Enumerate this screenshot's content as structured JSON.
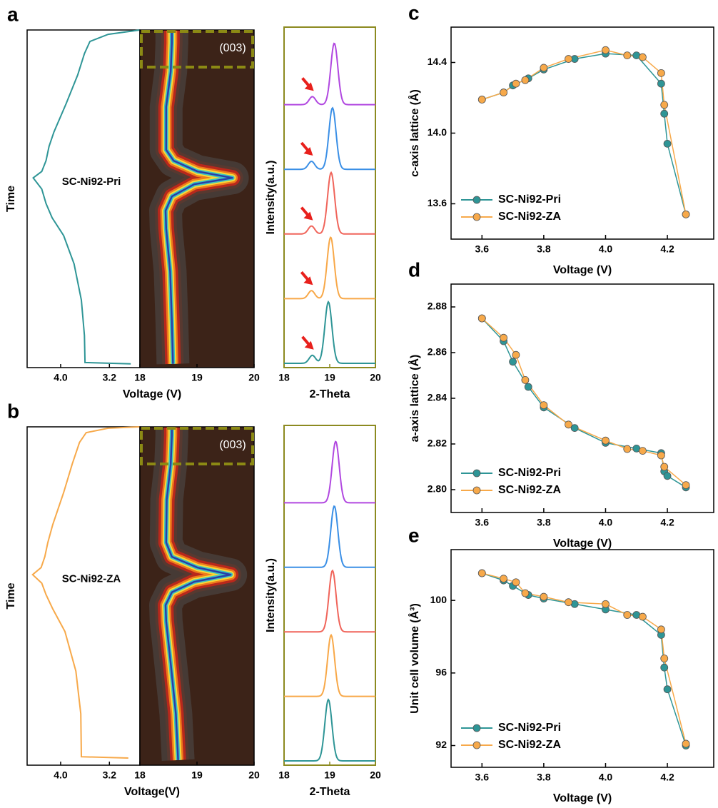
{
  "chart_data": [
    {
      "type": "line",
      "panel": "a",
      "xlabel": "Voltage (V)",
      "ylabel": "Time",
      "annotation": "SC-Ni92-Pri",
      "color": "#2e9596",
      "x": [
        2.85,
        3.6,
        3.61,
        3.66,
        3.78,
        3.95,
        4.14,
        4.24,
        4.31,
        4.45,
        4.31,
        4.24,
        4.19,
        4.11,
        3.91,
        3.72,
        3.61,
        3.52,
        3.22,
        2.7
      ],
      "y": [
        0.011,
        0.015,
        0.095,
        0.2,
        0.307,
        0.391,
        0.444,
        0.486,
        0.529,
        0.562,
        0.581,
        0.613,
        0.655,
        0.698,
        0.782,
        0.867,
        0.93,
        0.966,
        0.987,
        1.0
      ],
      "xlim": [
        4.55,
        2.7
      ],
      "xticks": [
        {
          "value": 4,
          "label": "4.0"
        },
        3.2
      ],
      "ylim": [
        0,
        1
      ]
    },
    {
      "type": "contour",
      "annotation": "(003)",
      "x": [
        18.58,
        18.56,
        18.53,
        18.46,
        18.45,
        18.56,
        18.95,
        19.62,
        19.01,
        18.59,
        18.46,
        18.46,
        18.54,
        18.56,
        18.56
      ],
      "y": [
        0.011,
        0.137,
        0.285,
        0.412,
        0.465,
        0.507,
        0.543,
        0.562,
        0.581,
        0.613,
        0.645,
        0.772,
        0.877,
        0.962,
        1.0
      ],
      "xlim": [
        18,
        20
      ],
      "xticks": [
        18,
        19,
        20
      ],
      "ylim": [
        0,
        1
      ]
    },
    {
      "type": "spectra",
      "xlabel": "2-Theta",
      "ylabel": "Intensity(a.u.)",
      "xlim": [
        18,
        20
      ],
      "xticks": [
        18,
        19,
        20
      ],
      "arrow_color": "#e8201c",
      "series": [
        {
          "color": "#b148e0",
          "peak": 19.1,
          "shoulder": 18.62
        },
        {
          "color": "#3a8fe6",
          "peak": 19.06,
          "shoulder": 18.6
        },
        {
          "color": "#f0645a",
          "peak": 19.03,
          "shoulder": 18.6
        },
        {
          "color": "#f8a848",
          "peak": 19.02,
          "shoulder": 18.6
        },
        {
          "color": "#2e9596",
          "peak": 18.97,
          "shoulder": 18.62
        }
      ]
    },
    {
      "type": "line",
      "panel": "b",
      "xlabel": "Voltage(V)",
      "ylabel": "Time",
      "annotation": "SC-Ni92-ZA",
      "color": "#f7a94a",
      "x": [
        2.89,
        3.66,
        3.67,
        3.75,
        3.93,
        4.13,
        4.24,
        4.31,
        4.46,
        4.32,
        4.26,
        4.21,
        4.13,
        3.95,
        3.81,
        3.69,
        3.58,
        3.22,
        2.7
      ],
      "y": [
        0.021,
        0.025,
        0.152,
        0.278,
        0.395,
        0.462,
        0.504,
        0.538,
        0.563,
        0.584,
        0.616,
        0.658,
        0.711,
        0.806,
        0.89,
        0.954,
        0.983,
        0.996,
        1.0
      ],
      "xlim": [
        4.55,
        2.7
      ],
      "xticks": [
        {
          "value": 4,
          "label": "4.0"
        },
        3.2
      ],
      "ylim": [
        0,
        1
      ]
    },
    {
      "type": "contour",
      "annotation": "(003)",
      "x": [
        18.67,
        18.63,
        18.54,
        18.46,
        18.45,
        18.56,
        18.95,
        19.59,
        19.01,
        18.56,
        18.46,
        18.47,
        18.54,
        18.56,
        18.56
      ],
      "y": [
        0.015,
        0.152,
        0.3,
        0.426,
        0.473,
        0.511,
        0.542,
        0.563,
        0.584,
        0.616,
        0.658,
        0.785,
        0.89,
        0.975,
        1.0
      ],
      "xlim": [
        18,
        20
      ],
      "xticks": [
        18,
        19,
        20
      ],
      "ylim": [
        0,
        1
      ]
    },
    {
      "type": "spectra",
      "xlabel": "2-Theta",
      "ylabel": "Intensity(a.u.)",
      "xlim": [
        18,
        20
      ],
      "xticks": [
        18,
        19,
        20
      ],
      "series": [
        {
          "color": "#b148e0",
          "peak": 19.13
        },
        {
          "color": "#3a8fe6",
          "peak": 19.1
        },
        {
          "color": "#f0645a",
          "peak": 19.06
        },
        {
          "color": "#f8a848",
          "peak": 19.03
        },
        {
          "color": "#2e9596",
          "peak": 18.97
        }
      ]
    },
    {
      "type": "scatter",
      "panel": "c",
      "xlabel": "Voltage (V)",
      "ylabel": "c-axis lattice (Å)",
      "legend": "lower left",
      "xlim": [
        3.5,
        4.35
      ],
      "xticks": [
        3.6,
        3.8,
        {
          "value": 4,
          "label": "4.0"
        },
        4.2
      ],
      "ylim": [
        13.4,
        14.6
      ],
      "yticks": [
        13.6,
        {
          "value": 14,
          "label": "14.0"
        },
        14.4
      ],
      "series": [
        {
          "name": "SC-Ni92-Pri",
          "color": "#2e9596",
          "x": [
            3.6,
            3.67,
            3.7,
            3.75,
            3.8,
            3.9,
            4.0,
            4.1,
            4.18,
            4.19,
            4.2,
            4.26
          ],
          "values": [
            14.19,
            14.23,
            14.27,
            14.31,
            14.36,
            14.42,
            14.45,
            14.44,
            14.28,
            14.11,
            13.94,
            13.54
          ]
        },
        {
          "name": "SC-Ni92-ZA",
          "color": "#f7a94a",
          "x": [
            3.6,
            3.67,
            3.71,
            3.74,
            3.8,
            3.88,
            4.0,
            4.07,
            4.12,
            4.18,
            4.19,
            4.26
          ],
          "values": [
            14.19,
            14.23,
            14.28,
            14.3,
            14.37,
            14.42,
            14.47,
            14.44,
            14.43,
            14.34,
            14.16,
            13.54
          ]
        }
      ]
    },
    {
      "type": "scatter",
      "panel": "d",
      "xlabel": "Voltage (V)",
      "ylabel": "a-axis lattice (Å)",
      "legend": "lower left",
      "xlim": [
        3.5,
        4.35
      ],
      "xticks": [
        3.6,
        3.8,
        {
          "value": 4,
          "label": "4.0"
        },
        4.2
      ],
      "ylim": [
        2.79,
        2.89
      ],
      "yticks": [
        {
          "value": 2.8,
          "label": "2.80"
        },
        2.82,
        2.84,
        2.86,
        2.88
      ],
      "series": [
        {
          "name": "SC-Ni92-Pri",
          "color": "#2e9596",
          "x": [
            3.6,
            3.67,
            3.7,
            3.75,
            3.8,
            3.9,
            4.0,
            4.1,
            4.18,
            4.19,
            4.2,
            4.26
          ],
          "values": [
            2.875,
            2.865,
            2.856,
            2.845,
            2.836,
            2.827,
            2.8205,
            2.818,
            2.816,
            2.808,
            2.806,
            2.801
          ]
        },
        {
          "name": "SC-Ni92-ZA",
          "color": "#f7a94a",
          "x": [
            3.6,
            3.67,
            3.71,
            3.74,
            3.8,
            3.88,
            4.0,
            4.07,
            4.12,
            4.18,
            4.19,
            4.26
          ],
          "values": [
            2.875,
            2.8665,
            2.859,
            2.848,
            2.837,
            2.8285,
            2.8215,
            2.8178,
            2.817,
            2.815,
            2.81,
            2.802
          ]
        }
      ]
    },
    {
      "type": "scatter",
      "panel": "e",
      "xlabel": "Voltage (V)",
      "ylabel": "Unit cell volume (Å³)",
      "legend": "lower left",
      "xlim": [
        3.5,
        4.35
      ],
      "xticks": [
        3.6,
        3.8,
        {
          "value": 4,
          "label": "4.0"
        },
        4.2
      ],
      "ylim": [
        90.8,
        102.8
      ],
      "yticks": [
        92,
        96,
        100
      ],
      "series": [
        {
          "name": "SC-Ni92-Pri",
          "color": "#2e9596",
          "x": [
            3.6,
            3.67,
            3.7,
            3.75,
            3.8,
            3.9,
            4.0,
            4.1,
            4.18,
            4.19,
            4.2,
            4.26
          ],
          "values": [
            101.5,
            101.1,
            100.8,
            100.3,
            100.1,
            99.8,
            99.5,
            99.2,
            98.1,
            96.3,
            95.1,
            92.0
          ]
        },
        {
          "name": "SC-Ni92-ZA",
          "color": "#f7a94a",
          "x": [
            3.6,
            3.67,
            3.71,
            3.74,
            3.8,
            3.88,
            4.0,
            4.07,
            4.12,
            4.18,
            4.19,
            4.26
          ],
          "values": [
            101.5,
            101.2,
            101.0,
            100.4,
            100.2,
            99.9,
            99.8,
            99.2,
            99.1,
            98.4,
            96.8,
            92.1
          ]
        }
      ]
    }
  ]
}
